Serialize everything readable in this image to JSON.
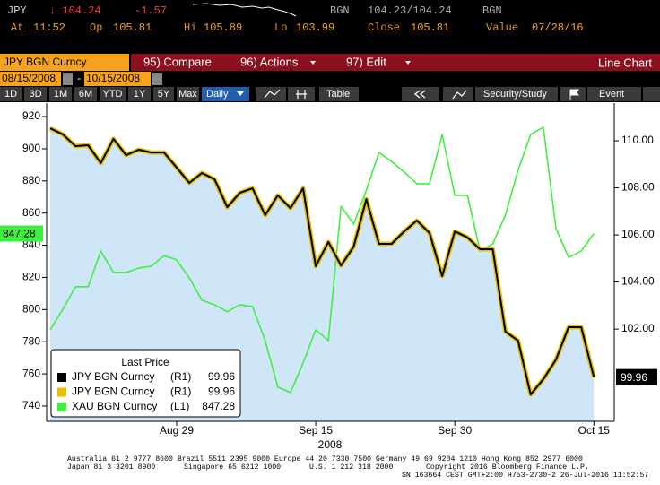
{
  "header": {
    "ticker": "JPY",
    "price": "↓ 104.24",
    "change": "-1.57",
    "currency_left": "BGN",
    "bid_ask": "104.23/104.24",
    "currency_right": "BGN",
    "stats": [
      {
        "label": "At",
        "value": "11:52"
      },
      {
        "label": "Op",
        "value": "105.81"
      },
      {
        "label": "Hi",
        "value": "105.89"
      },
      {
        "label": "Lo",
        "value": "103.99"
      },
      {
        "label": "Close",
        "value": "105.81"
      },
      {
        "label": "Value",
        "value": "07/28/16"
      }
    ]
  },
  "toolbar": {
    "security": "JPY BGN Curncy",
    "menu": [
      "95) Compare",
      "96) Actions",
      "97) Edit"
    ],
    "view": "Line Chart",
    "start_date": "08/15/2008",
    "separator": "-",
    "end_date": "10/15/2008",
    "periods": [
      "1D",
      "3D",
      "1M",
      "6M",
      "YTD",
      "1Y",
      "5Y",
      "Max"
    ],
    "frequency": "Daily",
    "table": "Table",
    "security_study": "Security/Study",
    "event": "Event"
  },
  "chart_data": {
    "type": "line",
    "legend_title": "Last Price",
    "legend": "lower left",
    "grid": false,
    "xlabel": "2008",
    "categories": [
      null,
      null,
      null,
      null,
      null,
      null,
      null,
      null,
      null,
      null,
      "Aug 29",
      null,
      null,
      null,
      null,
      null,
      null,
      null,
      null,
      null,
      null,
      "Sep 15",
      null,
      null,
      null,
      null,
      null,
      null,
      null,
      null,
      null,
      null,
      "Sep 30",
      null,
      null,
      null,
      null,
      null,
      null,
      null,
      null,
      null,
      null,
      "Oct 15"
    ],
    "ylim": [
      730.5,
      928.4
    ],
    "yticks": [
      740,
      760,
      780,
      800,
      820,
      840,
      860,
      880,
      900,
      920
    ],
    "y2lim": [
      98.08,
      111.6
    ],
    "y2ticks": [
      {
        "value": 102,
        "label": "102.00"
      },
      {
        "value": 104,
        "label": "104.00"
      },
      {
        "value": 106,
        "label": "106.00"
      },
      {
        "value": 108,
        "label": "108.00"
      },
      {
        "value": 110,
        "label": "110.00"
      }
    ],
    "series": [
      {
        "name": "JPY BGN Curncy",
        "color": "#000000",
        "fill": "#cfe5f8",
        "axis": "y2",
        "axis_tag": "(R1)",
        "values": [
          110.53,
          110.27,
          109.77,
          109.81,
          109.05,
          110.08,
          109.39,
          109.62,
          109.5,
          109.5,
          108.86,
          108.21,
          108.63,
          108.36,
          107.18,
          107.79,
          107.98,
          106.84,
          107.68,
          107.14,
          107.98,
          104.67,
          105.7,
          104.7,
          105.5,
          107.52,
          105.62,
          105.62,
          106.15,
          106.61,
          106.08,
          104.25,
          106.15,
          105.89,
          105.39,
          105.39,
          101.89,
          101.51,
          99.22,
          99.87,
          100.7,
          102.08,
          102.08,
          99.96
        ]
      },
      {
        "name": "JPY BGN Curncy",
        "color": "#e6c000",
        "axis": "y2",
        "axis_tag": "(R1)",
        "values": [
          110.53,
          110.27,
          109.77,
          109.81,
          109.05,
          110.08,
          109.39,
          109.62,
          109.5,
          109.5,
          108.86,
          108.21,
          108.63,
          108.36,
          107.18,
          107.79,
          107.98,
          106.84,
          107.68,
          107.14,
          107.98,
          104.67,
          105.7,
          104.7,
          105.5,
          107.52,
          105.62,
          105.62,
          106.15,
          106.61,
          106.08,
          104.25,
          106.15,
          105.89,
          105.39,
          105.39,
          101.89,
          101.51,
          99.22,
          99.87,
          100.7,
          102.08,
          102.08,
          99.96
        ]
      },
      {
        "name": "XAU BGN Curncy",
        "color": "#3ef03e",
        "axis": "y",
        "axis_tag": "(L1)",
        "values": [
          787.4,
          800.2,
          814.2,
          814.2,
          836.4,
          823.1,
          823.1,
          825.8,
          827.0,
          833.6,
          830.9,
          819.7,
          805.8,
          803.0,
          798.6,
          803.0,
          801.9,
          780.7,
          751.8,
          748.4,
          766.8,
          787.4,
          780.7,
          864.3,
          853.1,
          874.3,
          897.7,
          892.1,
          885.5,
          878.2,
          878.2,
          908.9,
          871.0,
          871.0,
          836.4,
          840.9,
          858.7,
          886.6,
          908.9,
          913.3,
          850.4,
          832.5,
          836.4,
          847.28
        ]
      }
    ]
  },
  "footer": {
    "line1": "Australia 61 2 9777 8600 Brazil 5511 2395 9000 Europe 44 20 7330 7500 Germany 49 69 9204 1210 Hong Kong 852 2977 6000",
    "line2": [
      "Japan 81 3 3201 8900",
      "Singapore 65 6212 1000",
      "U.S. 1 212 318 2000",
      "Copyright 2016 Bloomberg Finance L.P."
    ],
    "session": "SN 163664 CEST GMT+2:00 H753-2730-2 26-Jul-2016 11:52:57"
  }
}
